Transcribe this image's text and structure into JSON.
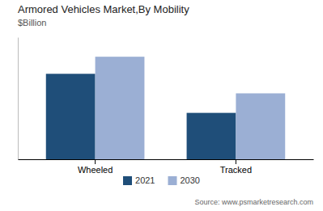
{
  "chart_data": {
    "type": "bar",
    "title": "Armored Vehicles Market,By Mobility",
    "subtitle": "$Billion",
    "categories": [
      "Wheeled",
      "Tracked"
    ],
    "series": [
      {
        "name": "2021",
        "color": "#1f4e79",
        "values": [
          17.5,
          9.5
        ]
      },
      {
        "name": "2030",
        "color": "#9bafd4",
        "values": [
          21.0,
          13.5
        ]
      }
    ],
    "ylim": [
      0,
      25
    ],
    "tick_labels": "x",
    "legend": "bottom",
    "annotation": "Source: www.psmarketresearch.com"
  }
}
